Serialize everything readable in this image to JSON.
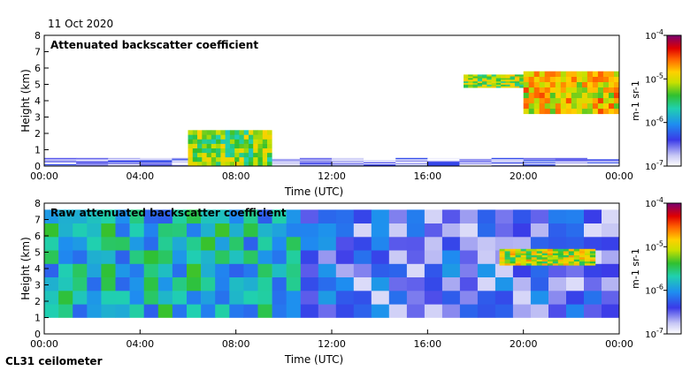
{
  "header": {
    "date": "11 Oct 2020"
  },
  "footer": {
    "instrument": "CL31 ceilometer"
  },
  "chart_data": [
    {
      "type": "heatmap",
      "title": "Attenuated backscatter coefficient",
      "xlabel": "Time (UTC)",
      "ylabel": "Height (km)",
      "xlim": [
        0,
        24
      ],
      "ylim": [
        0,
        8
      ],
      "x_ticks": [
        "00:00",
        "04:00",
        "08:00",
        "12:00",
        "16:00",
        "20:00",
        "00:00"
      ],
      "y_ticks": [
        "0",
        "1",
        "2",
        "3",
        "4",
        "5",
        "6",
        "7",
        "8"
      ],
      "colorbar": {
        "label": "m-1 sr-1",
        "ticks": [
          "10-4",
          "10-5",
          "10-6",
          "10-7"
        ],
        "scale": "log",
        "range": [
          1e-07,
          0.0001
        ]
      },
      "features": [
        {
          "name": "boundary-layer",
          "t": [
            0,
            24
          ],
          "h": [
            0,
            0.5
          ],
          "level": -6.7
        },
        {
          "name": "morning-aerosol",
          "t": [
            6,
            9.5
          ],
          "h": [
            0,
            2.2
          ],
          "level": -5.3
        },
        {
          "name": "elevated-layer-mid",
          "t": [
            17.5,
            21
          ],
          "h": [
            4.8,
            5.6
          ],
          "level": -5.2
        },
        {
          "name": "elevated-layer-late",
          "t": [
            20,
            24
          ],
          "h": [
            3.2,
            5.8
          ],
          "level": -4.9
        }
      ]
    },
    {
      "type": "heatmap",
      "title": "Raw attenuated backscatter coefficient",
      "xlabel": "Time (UTC)",
      "ylabel": "Height (km)",
      "xlim": [
        0,
        24
      ],
      "ylim": [
        0,
        8
      ],
      "x_ticks": [
        "00:00",
        "04:00",
        "08:00",
        "12:00",
        "16:00",
        "20:00",
        "00:00"
      ],
      "y_ticks": [
        "0",
        "1",
        "2",
        "3",
        "4",
        "5",
        "6",
        "7",
        "8"
      ],
      "colorbar": {
        "label": "m-1 sr-1",
        "ticks": [
          "10-4",
          "10-5",
          "10-6",
          "10-7"
        ],
        "scale": "log",
        "range": [
          1e-07,
          0.0001
        ]
      },
      "features": [
        {
          "name": "daytime-noise",
          "t": [
            0,
            10.7
          ],
          "h": [
            1,
            7.6
          ],
          "level": -5.8
        },
        {
          "name": "nighttime-noise",
          "t": [
            10.7,
            24
          ],
          "h": [
            1,
            7.6
          ],
          "level": -6.4
        },
        {
          "name": "elevated-layer-late",
          "t": [
            19,
            23
          ],
          "h": [
            4.2,
            5.2
          ],
          "level": -5.1
        }
      ]
    }
  ]
}
